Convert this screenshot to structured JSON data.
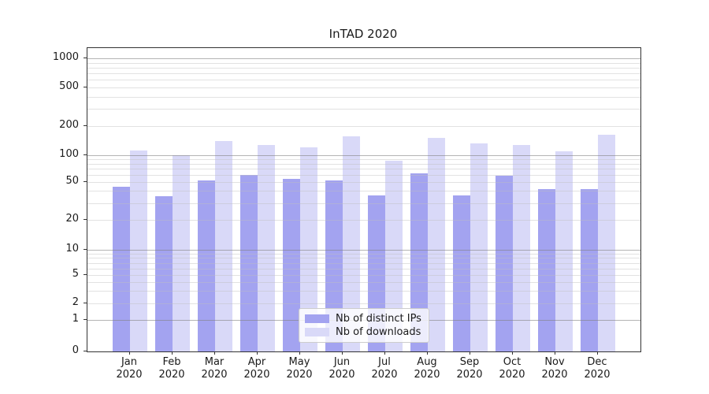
{
  "title": "InTAD 2020",
  "chart_data": {
    "type": "bar",
    "title": "InTAD 2020",
    "xlabel": "",
    "ylabel": "",
    "y_scale": "symlog",
    "ylim": [
      0,
      1290
    ],
    "grid": true,
    "legend_position": "lower center",
    "y_ticks": [
      0,
      1,
      2,
      5,
      10,
      20,
      50,
      100,
      200,
      500,
      1000
    ],
    "categories": [
      {
        "month": "Jan",
        "year": "2020"
      },
      {
        "month": "Feb",
        "year": "2020"
      },
      {
        "month": "Mar",
        "year": "2020"
      },
      {
        "month": "Apr",
        "year": "2020"
      },
      {
        "month": "May",
        "year": "2020"
      },
      {
        "month": "Jun",
        "year": "2020"
      },
      {
        "month": "Jul",
        "year": "2020"
      },
      {
        "month": "Aug",
        "year": "2020"
      },
      {
        "month": "Sep",
        "year": "2020"
      },
      {
        "month": "Oct",
        "year": "2020"
      },
      {
        "month": "Nov",
        "year": "2020"
      },
      {
        "month": "Dec",
        "year": "2020"
      }
    ],
    "series": [
      {
        "name": "Nb of distinct IPs",
        "color": "#a3a3f0",
        "values": [
          44,
          35,
          52,
          60,
          54,
          52,
          36,
          62,
          36,
          58,
          42,
          42
        ]
      },
      {
        "name": "Nb of downloads",
        "color": "#d9d9f8",
        "values": [
          112,
          100,
          140,
          128,
          120,
          158,
          86,
          151,
          132,
          126,
          109,
          163
        ]
      }
    ]
  }
}
